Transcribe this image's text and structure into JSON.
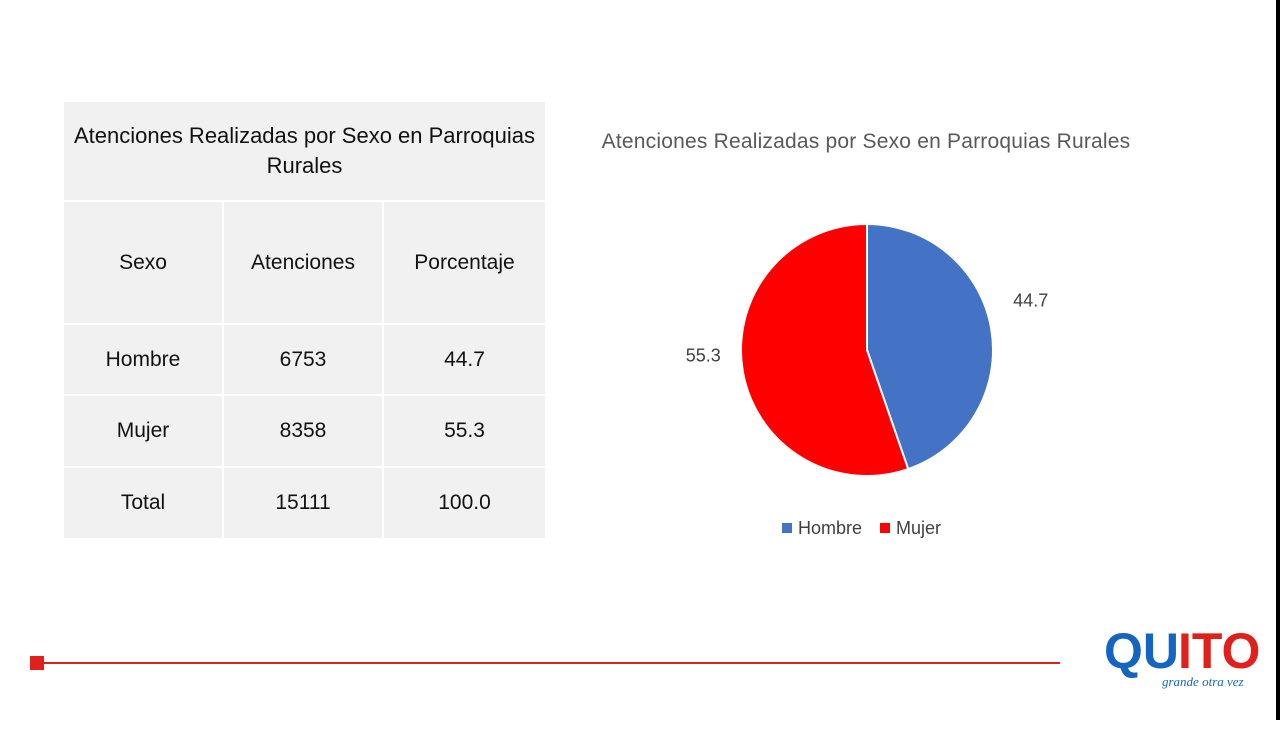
{
  "table": {
    "title": "Atenciones Realizadas por Sexo en Parroquias Rurales",
    "headers": [
      "Sexo",
      "Atenciones",
      "Porcentaje"
    ],
    "rows": [
      [
        "Hombre",
        "6753",
        "44.7"
      ],
      [
        "Mujer",
        "8358",
        "55.3"
      ],
      [
        "Total",
        "15111",
        "100.0"
      ]
    ]
  },
  "chart_data": {
    "type": "pie",
    "title": "Atenciones Realizadas por Sexo en Parroquias Rurales",
    "categories": [
      "Hombre",
      "Mujer"
    ],
    "values": [
      44.7,
      55.3
    ],
    "colors": [
      "#4472c4",
      "#ff0000"
    ],
    "data_labels": [
      "44.7",
      "55.3"
    ],
    "legend_position": "bottom"
  },
  "logo": {
    "brand": "QUITO",
    "tagline": "grande otra vez",
    "colors": [
      "#1565c0",
      "#e0201b"
    ]
  }
}
